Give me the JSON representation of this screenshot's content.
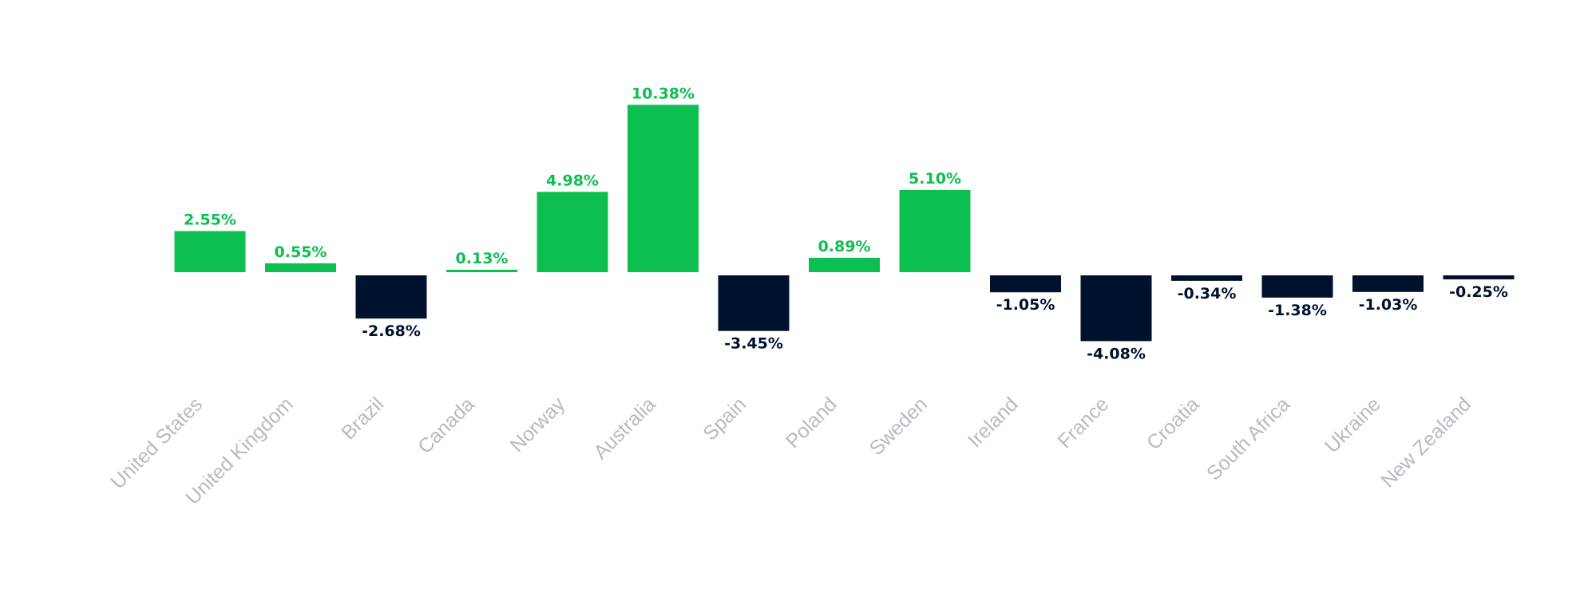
{
  "chart_data": {
    "type": "bar",
    "title": "",
    "xlabel": "",
    "ylabel": "",
    "categories": [
      "United States",
      "United Kingdom",
      "Brazil",
      "Canada",
      "Norway",
      "Australia",
      "Spain",
      "Poland",
      "Sweden",
      "Ireland",
      "France",
      "Croatia",
      "South Africa",
      "Ukraine",
      "New Zealand"
    ],
    "values": [
      2.55,
      0.55,
      -2.68,
      0.13,
      4.98,
      10.38,
      -3.45,
      0.89,
      5.1,
      -1.05,
      -4.08,
      -0.34,
      -1.38,
      -1.03,
      -0.25
    ],
    "value_labels": [
      "2.55%",
      "0.55%",
      "-2.68%",
      "0.13%",
      "4.98%",
      "10.38%",
      "-3.45%",
      "0.89%",
      "5.10%",
      "-1.05%",
      "-4.08%",
      "-0.34%",
      "-1.38%",
      "-1.03%",
      "-0.25%"
    ],
    "ylim": [
      -6.5,
      12
    ],
    "grid": false,
    "legend": "none",
    "colors": {
      "positive": "#0dbf50",
      "negative": "#00112e"
    }
  }
}
